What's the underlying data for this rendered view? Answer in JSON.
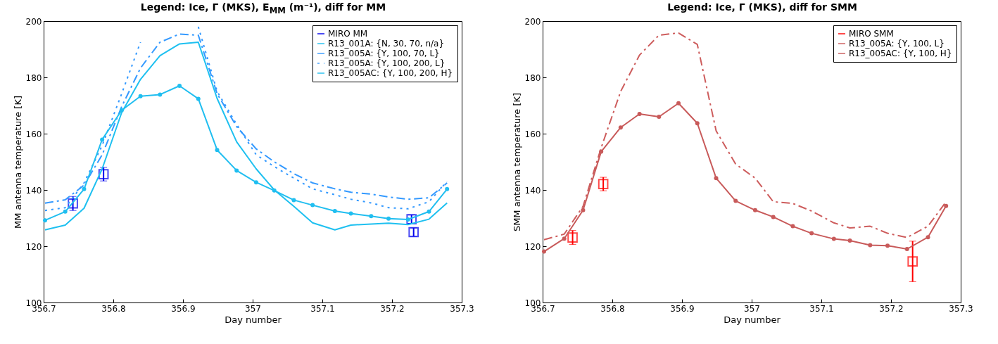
{
  "chart_data": [
    {
      "type": "line",
      "title": "Legend: Ice, Γ (MKS), E$_{MM}$ (m⁻¹), diff for MM",
      "xlabel": "Day number",
      "ylabel": "MM antenna temperature [K]",
      "x": [
        356.702,
        356.731,
        356.758,
        356.784,
        356.812,
        356.839,
        356.867,
        356.895,
        356.922,
        356.949,
        356.977,
        357.005,
        357.031,
        357.059,
        357.086,
        357.118,
        357.141,
        357.17,
        357.195,
        357.223,
        357.253,
        357.279
      ],
      "xlim": [
        356.7,
        357.3
      ],
      "xticks": [
        356.7,
        356.8,
        356.9,
        357,
        357.1,
        357.2,
        357.3
      ],
      "ylim": [
        100,
        200
      ],
      "yticks": [
        100,
        120,
        140,
        160,
        180,
        200
      ],
      "grid": false,
      "legend": "top right",
      "series": [
        {
          "name": "MIRO MM",
          "type": "scatter",
          "marker": "square",
          "color": "#0000ee",
          "x": [
            356.742,
            356.786,
            357.228,
            357.231
          ],
          "values": [
            135.2,
            145.6,
            129.6,
            125
          ],
          "errors": [
            2.5,
            2.4,
            1.5,
            1.5
          ]
        },
        {
          "name": "R13_001A: {N, 30, 70, n/a}",
          "color": "#1ec0f0",
          "line_style": "solid",
          "values": [
            125.8,
            127.5,
            133.5,
            147.5,
            167.5,
            179.3,
            187.7,
            191.9,
            192.5,
            172.5,
            157.1,
            147.5,
            140,
            134.2,
            128.3,
            125.8,
            127.5,
            127.9,
            128.2,
            127.7,
            129.6,
            135.4
          ]
        },
        {
          "name": "R13_005A: {Y, 100, 70, L}",
          "color": "#3399ff",
          "line_style": "dashed",
          "values": [
            135.3,
            136.5,
            141.7,
            152.5,
            169.6,
            183.3,
            192.5,
            195.4,
            195,
            174.2,
            162.5,
            154.6,
            150,
            145.8,
            142.5,
            140.4,
            139.2,
            138.5,
            137.5,
            136.7,
            137.2,
            142.5
          ]
        },
        {
          "name": "R13_005A: {Y, 100, 200, L}",
          "color": "#3399ff",
          "line_style": "dotted",
          "values": [
            132.7,
            133.7,
            142.5,
            155.8,
            174.2,
            192.5,
            null,
            null,
            198,
            175,
            163.3,
            152.5,
            148.3,
            144.2,
            140.4,
            138.3,
            136.7,
            135.4,
            133.7,
            133.3,
            135.8,
            143
          ]
        },
        {
          "name": "R13_005AC: {Y, 100, 200, H}",
          "color": "#20bef0",
          "line_style": "solid",
          "marker": "circle",
          "values": [
            129.2,
            132.3,
            140.3,
            157.9,
            168.3,
            173.3,
            173.9,
            177,
            172.4,
            154.2,
            146.9,
            142.7,
            139.8,
            136.4,
            134.6,
            132.5,
            131.6,
            130.7,
            129.8,
            129.5,
            132.3,
            140.3
          ]
        }
      ]
    },
    {
      "type": "line",
      "title": "Legend: Ice, Γ (MKS), diff for SMM",
      "xlabel": "Day number",
      "ylabel": "SMM antenna temperature [K]",
      "x": [
        356.702,
        356.731,
        356.758,
        356.784,
        356.812,
        356.839,
        356.867,
        356.895,
        356.922,
        356.949,
        356.977,
        357.005,
        357.031,
        357.059,
        357.086,
        357.118,
        357.141,
        357.17,
        357.195,
        357.223,
        357.253,
        357.279
      ],
      "xlim": [
        356.7,
        357.3
      ],
      "xticks": [
        356.7,
        356.8,
        356.9,
        357,
        357.1,
        357.2,
        357.3
      ],
      "ylim": [
        100,
        200
      ],
      "yticks": [
        100,
        120,
        140,
        160,
        180,
        200
      ],
      "grid": false,
      "legend": "top right",
      "series": [
        {
          "name": "MIRO SMM",
          "type": "scatter",
          "marker": "square",
          "color": "#ff0000",
          "x": [
            356.743,
            356.787,
            357.231
          ],
          "values": [
            123.1,
            142.1,
            114.6
          ],
          "errors": [
            2.5,
            2.4,
            7.2
          ]
        },
        {
          "name": "R13_005A: {Y, 100, L}",
          "color": "#cd5c5c",
          "line_style": "dashed",
          "values": [
            122.3,
            124.3,
            134.2,
            155,
            175,
            187.9,
            195,
            195.8,
            191.7,
            161,
            149.2,
            144.2,
            135.8,
            135.2,
            132.5,
            128.3,
            126.5,
            127.1,
            124.6,
            123.1,
            127.1,
            135.8
          ]
        },
        {
          "name": "R13_005AC: {Y, 100, H}",
          "color": "#c85a5a",
          "line_style": "solid",
          "marker": "circle",
          "values": [
            118.1,
            122.7,
            132.8,
            153.6,
            162.2,
            167,
            166,
            170.8,
            163.7,
            144.2,
            136.1,
            132.8,
            130.4,
            127.1,
            124.6,
            122.6,
            122,
            120.4,
            120.2,
            119,
            123.2,
            134.3
          ]
        }
      ]
    }
  ]
}
